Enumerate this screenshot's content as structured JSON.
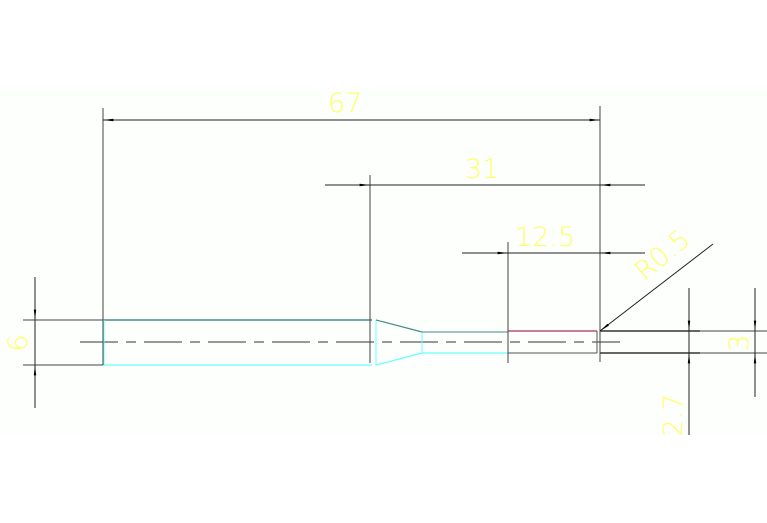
{
  "drawing": {
    "dimensions": {
      "overall_length": "67",
      "length_31": "31",
      "length_12_5": "12.5",
      "radius": "R0.5",
      "diameter_6": "6",
      "diameter_2_7": "2.7",
      "diameter_3": "3"
    },
    "colors": {
      "background": "#fcfffc",
      "dimension_text": "#ffff66",
      "outline": "#333333",
      "edge_cyan": "#66ffff",
      "edge_teal": "#4d8a8a",
      "edge_red": "#b03050"
    }
  }
}
